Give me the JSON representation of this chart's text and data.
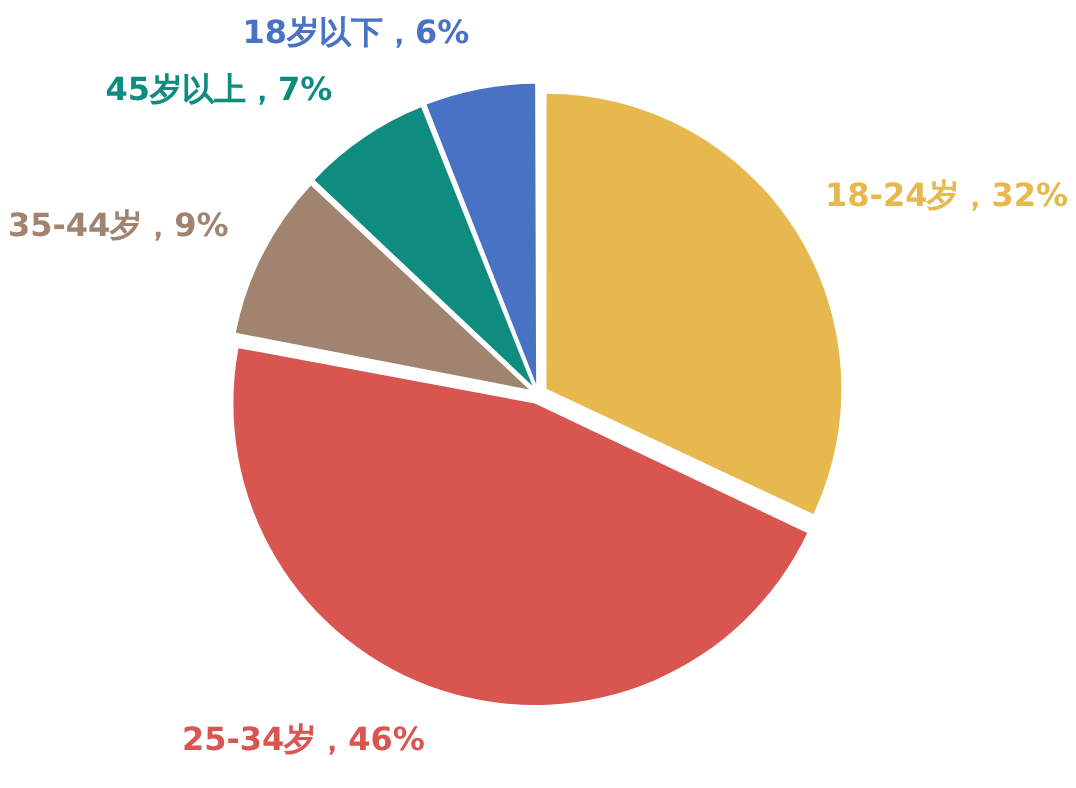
{
  "chart_data": {
    "type": "pie",
    "categories": [
      "18-24岁",
      "25-34岁",
      "35-44岁",
      "45岁以上",
      "18岁以下"
    ],
    "values": [
      32,
      46,
      9,
      7,
      6
    ],
    "colors": [
      "#e6b84e",
      "#d95550",
      "#a08470",
      "#0e8c80",
      "#4a72c4"
    ],
    "value_labels": [
      "，32%",
      "，46%",
      "，9%",
      "，7%",
      "，6%"
    ],
    "legend": false
  }
}
